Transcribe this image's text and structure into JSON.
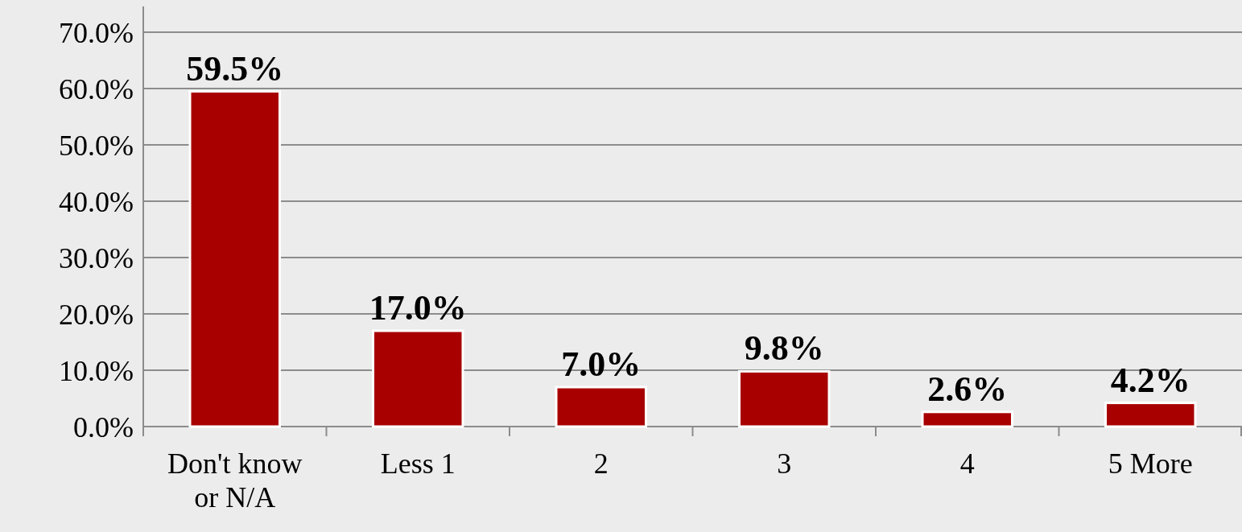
{
  "chart_data": {
    "type": "bar",
    "categories": [
      "Don't know or N/A",
      "Less 1",
      "2",
      "3",
      "4",
      "5 More"
    ],
    "values": [
      59.5,
      17.0,
      7.0,
      9.8,
      2.6,
      4.2
    ],
    "value_labels": [
      "59.5%",
      "17.0%",
      "7.0%",
      "9.8%",
      "2.6%",
      "4.2%"
    ],
    "color": "#a80000",
    "ylim": [
      0,
      70
    ],
    "yticks": [
      {
        "value": 0,
        "label": "0.0%"
      },
      {
        "value": 10,
        "label": "10.0%"
      },
      {
        "value": 20,
        "label": "20.0%"
      },
      {
        "value": 30,
        "label": "30.0%"
      },
      {
        "value": 40,
        "label": "40.0%"
      },
      {
        "value": 50,
        "label": "50.0%"
      },
      {
        "value": 60,
        "label": "60.0%"
      },
      {
        "value": 70,
        "label": "70.0%"
      }
    ],
    "grid": "y"
  }
}
